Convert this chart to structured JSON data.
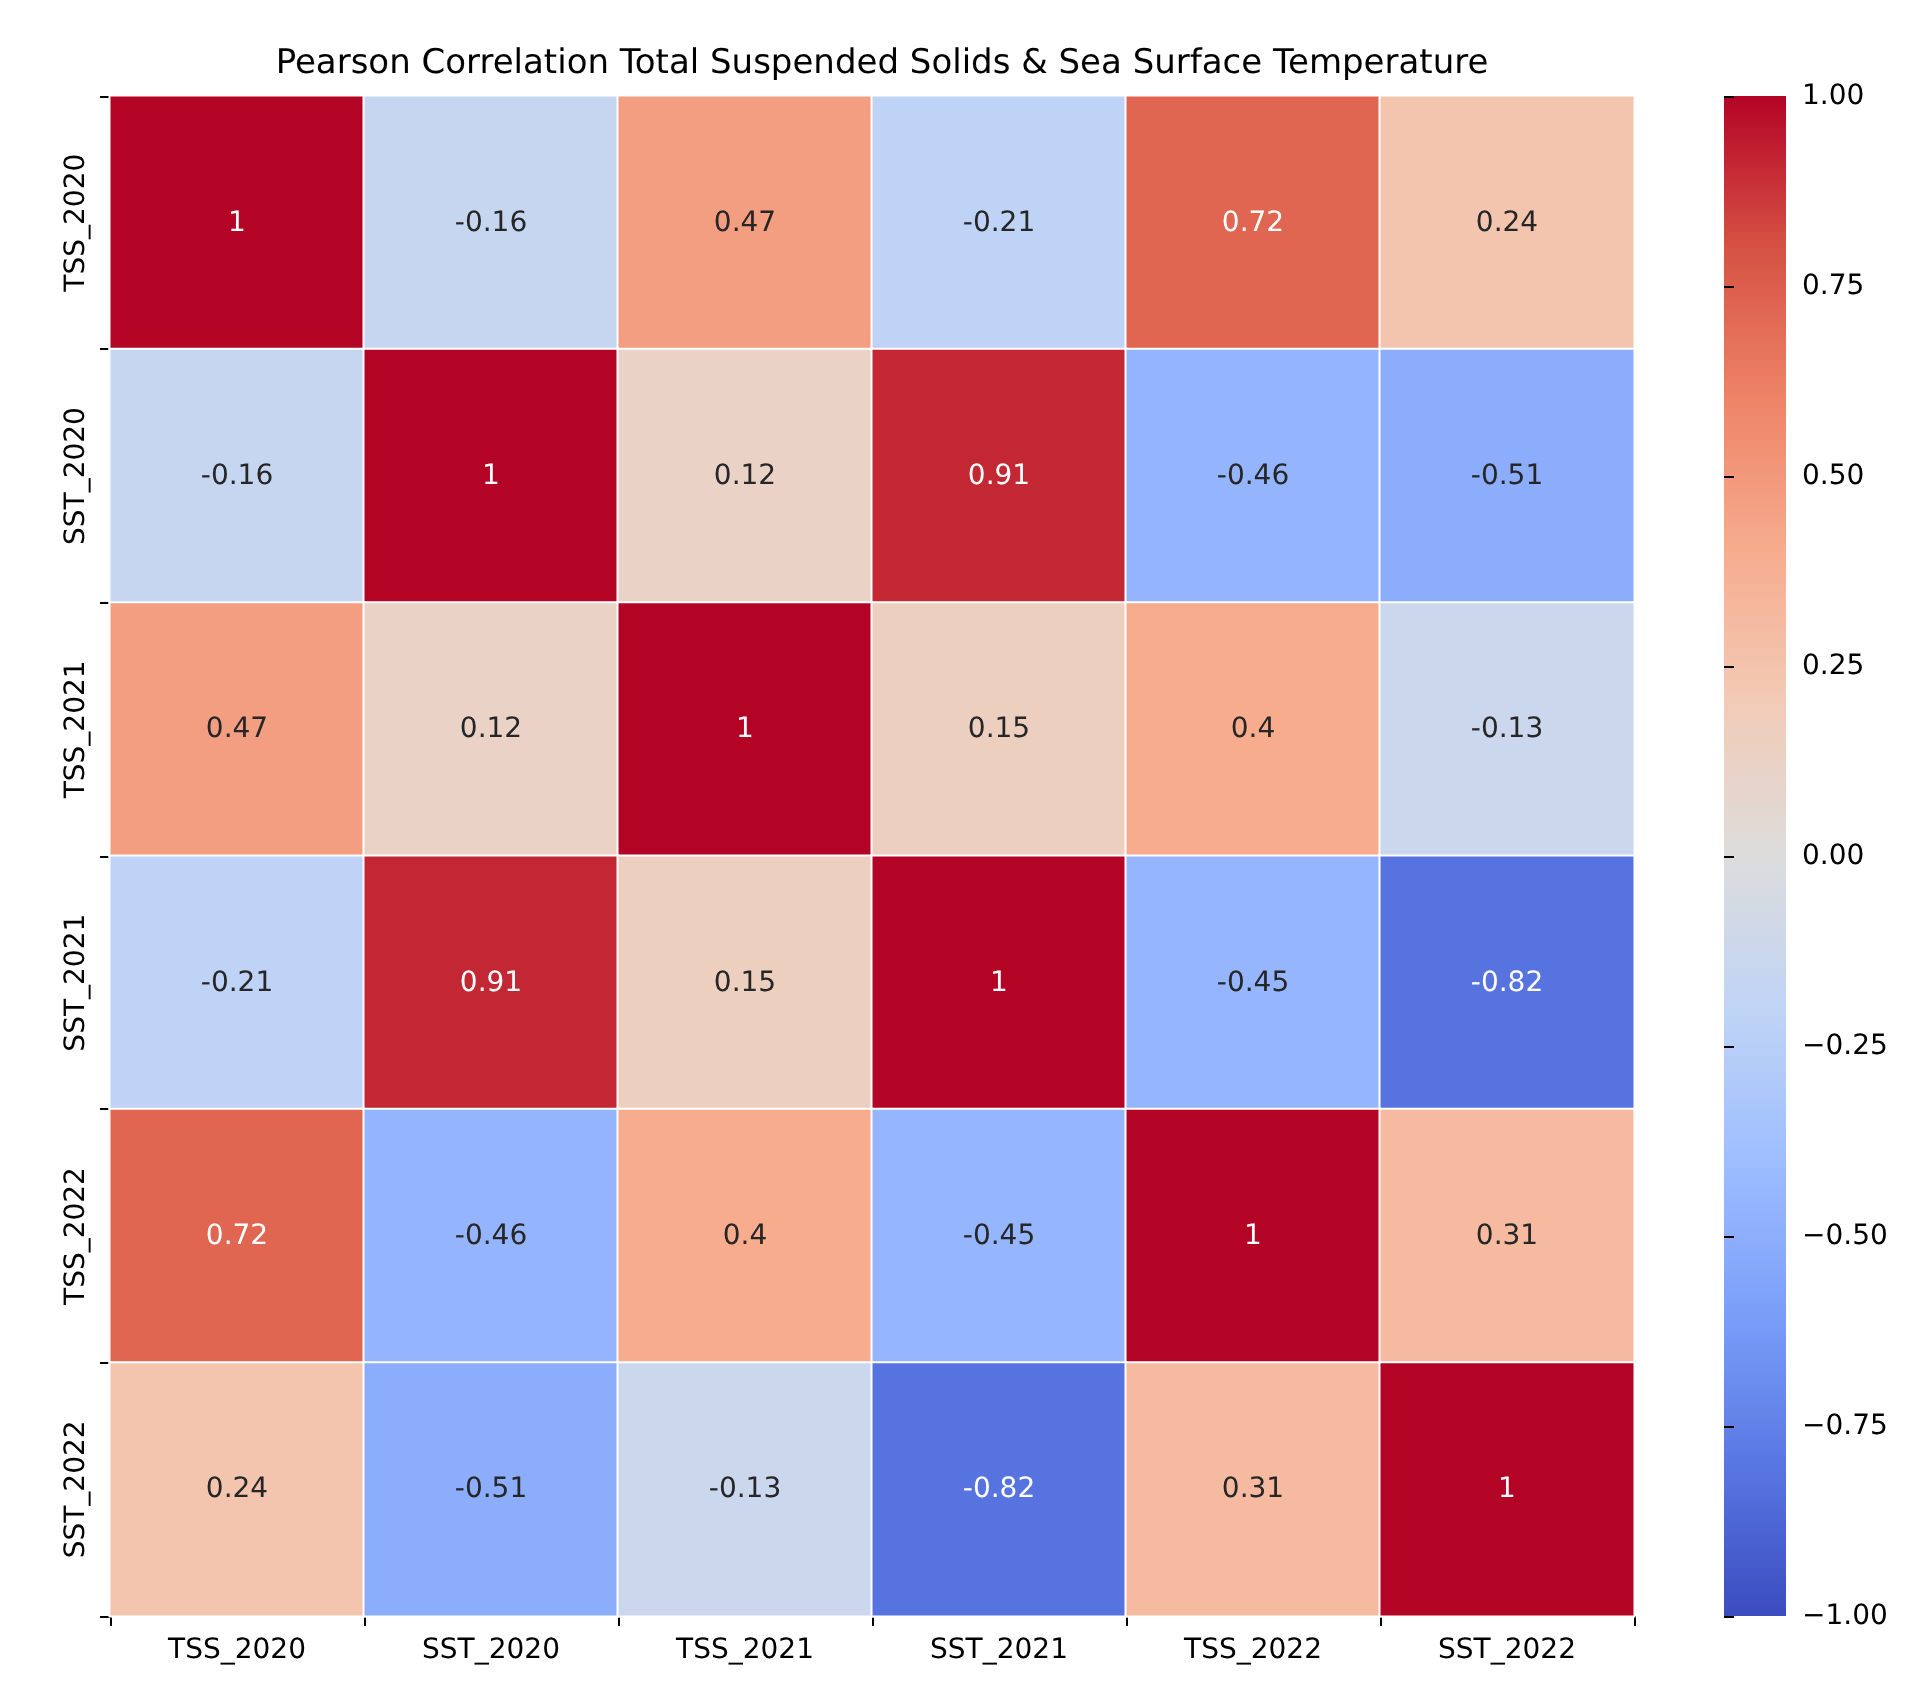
{
  "chart_data": {
    "type": "heatmap",
    "title": "Pearson Correlation Total Suspended Solids & Sea Surface Temperature",
    "categories": [
      "TSS_2020",
      "SST_2020",
      "TSS_2021",
      "SST_2021",
      "TSS_2022",
      "SST_2022"
    ],
    "y_categories": [
      "TSS_2020",
      "SST_2020",
      "TSS_2021",
      "SST_2021",
      "TSS_2022",
      "SST_2022"
    ],
    "cells": [
      [
        1,
        -0.16,
        0.47,
        -0.21,
        0.72,
        0.24
      ],
      [
        -0.16,
        1,
        0.12,
        0.91,
        -0.46,
        -0.51
      ],
      [
        0.47,
        0.12,
        1,
        0.15,
        0.4,
        -0.13
      ],
      [
        -0.21,
        0.91,
        0.15,
        1,
        -0.45,
        -0.82
      ],
      [
        0.72,
        -0.46,
        0.4,
        -0.45,
        1,
        0.31
      ],
      [
        0.24,
        -0.51,
        -0.13,
        -0.82,
        0.31,
        1
      ]
    ],
    "data_labels": true,
    "clim": [
      -1,
      1
    ],
    "cticks": [
      {
        "value": -1,
        "label": "−1.00"
      },
      {
        "value": -0.75,
        "label": "−0.75"
      },
      {
        "value": -0.5,
        "label": "−0.50"
      },
      {
        "value": -0.25,
        "label": "−0.25"
      },
      {
        "value": 0,
        "label": "0.00"
      },
      {
        "value": 0.25,
        "label": "0.25"
      },
      {
        "value": 0.5,
        "label": "0.50"
      },
      {
        "value": 0.75,
        "label": "0.75"
      },
      {
        "value": 1,
        "label": "1.00"
      }
    ]
  }
}
